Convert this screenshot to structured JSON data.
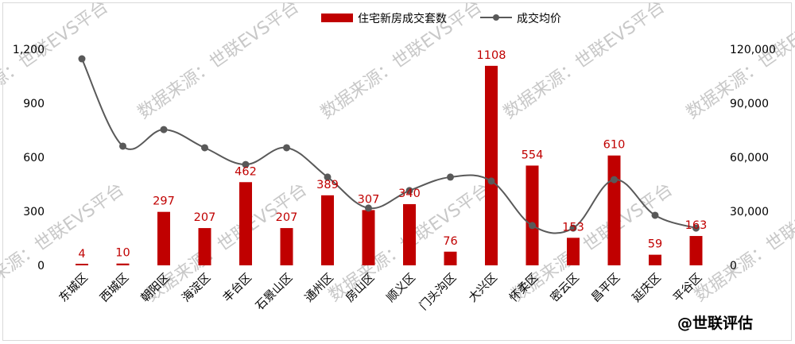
{
  "chart_data": {
    "type": "bar+line",
    "title": "",
    "categories": [
      "东城区",
      "西城区",
      "朝阳区",
      "海淀区",
      "丰台区",
      "石景山区",
      "通州区",
      "房山区",
      "顺义区",
      "门头沟区",
      "大兴区",
      "怀柔区",
      "密云区",
      "昌平区",
      "延庆区",
      "平谷区"
    ],
    "series": [
      {
        "name": "住宅新房成交套数",
        "type": "bar",
        "axis": "left",
        "color": "#c00000",
        "values": [
          4,
          10,
          297,
          207,
          462,
          207,
          389,
          307,
          340,
          76,
          1108,
          554,
          153,
          610,
          59,
          163
        ],
        "labels": [
          "4",
          "10",
          "297",
          "207",
          "462",
          "207",
          "389",
          "307",
          "340",
          "76",
          "1108",
          "554",
          "153",
          "610",
          "59",
          "163"
        ]
      },
      {
        "name": "成交均价",
        "type": "line",
        "axis": "right",
        "color": "#595959",
        "smooth": true,
        "markers": true,
        "values": [
          114700,
          66200,
          75400,
          65300,
          56000,
          65300,
          49000,
          31800,
          41500,
          49000,
          46800,
          22100,
          20700,
          47600,
          27800,
          20700
        ]
      }
    ],
    "left_axis": {
      "ylim": [
        0,
        1200
      ],
      "ticks": [
        "0",
        "300",
        "600",
        "900",
        "1,200"
      ]
    },
    "right_axis": {
      "ylim": [
        0,
        120000
      ],
      "ticks": [
        "0",
        "30,000",
        "60,000",
        "90,000",
        "120,000"
      ]
    },
    "xlabel": "",
    "ylabel": "",
    "grid": false,
    "legend_position": "top"
  },
  "legend": {
    "bar_label": "住宅新房成交套数",
    "line_label": "成交均价"
  },
  "watermark": {
    "text": "数据来源：世联EVS平台"
  },
  "credit": "@世联评估"
}
